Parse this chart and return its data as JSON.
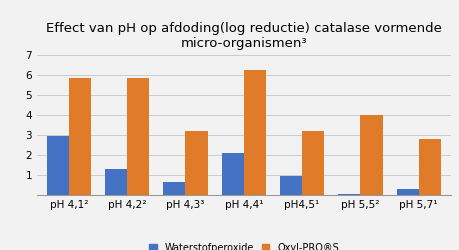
{
  "title": "Effect van pH op afdoding(log reductie) catalase vormende\nmicro-organismen³",
  "categories": [
    "pH 4,1²",
    "pH 4,2²",
    "pH 4,3³",
    "pH 4,4¹",
    "pH4,5¹",
    "pH 5,5²",
    "pH 5,7¹"
  ],
  "waterstofperoxide": [
    2.95,
    1.28,
    0.65,
    2.1,
    0.93,
    0.05,
    0.28
  ],
  "oxylpros": [
    5.85,
    5.85,
    3.2,
    6.25,
    3.2,
    4.0,
    2.78
  ],
  "color_water": "#4472c4",
  "color_oxyl": "#e07b2a",
  "legend_water": "Waterstofperoxide",
  "legend_oxyl": "Oxyl-PRO®S",
  "ylim": [
    0,
    7
  ],
  "yticks": [
    0,
    1,
    2,
    3,
    4,
    5,
    6,
    7
  ],
  "background_color": "#f2f2f2",
  "title_fontsize": 9.5,
  "tick_fontsize": 7.5,
  "legend_fontsize": 7
}
